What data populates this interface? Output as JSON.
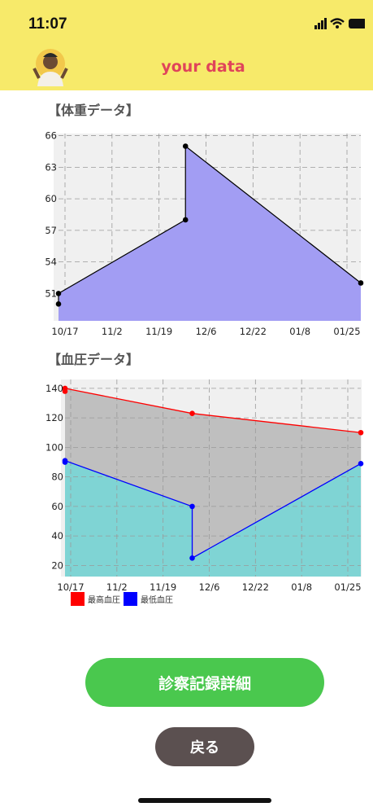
{
  "status_bar": {
    "time": "11:07"
  },
  "header": {
    "title": "your data"
  },
  "weight_section": {
    "title": "【体重データ】"
  },
  "bp_section": {
    "title": "【血圧データ】"
  },
  "buttons": {
    "records": "診察記録詳細",
    "back": "戻る"
  },
  "colors": {
    "header": "#f7ea6a",
    "title": "#e0445a",
    "green": "#4ac84e",
    "back": "#5b5050",
    "weight_fill": "#a29df3",
    "bp_high": "#ff0000",
    "bp_low": "#0000ff",
    "bp_gray": "#bfbfbf",
    "bp_teal": "#7fd4d4"
  },
  "chart_data": [
    {
      "type": "area",
      "title": "",
      "x_tick_labels": [
        "10/17",
        "11/2",
        "11/19",
        "12/6",
        "12/22",
        "01/8",
        "01/25"
      ],
      "y_ticks": [
        51,
        54,
        57,
        60,
        63,
        66
      ],
      "ylim": [
        48.4,
        66.2
      ],
      "xlim": [
        0,
        100
      ],
      "grid": true,
      "series": [
        {
          "points": [
            [
              0,
              50
            ],
            [
              0,
              51
            ],
            [
              42,
              58
            ],
            [
              42,
              65
            ],
            [
              100,
              52
            ]
          ]
        }
      ]
    },
    {
      "type": "area",
      "title": "",
      "x_tick_labels": [
        "10/17",
        "11/2",
        "11/19",
        "12/6",
        "12/22",
        "01/8",
        "01/25"
      ],
      "y_ticks": [
        20,
        40,
        60,
        80,
        100,
        120,
        140
      ],
      "ylim": [
        12.5,
        146
      ],
      "xlim": [
        0,
        100
      ],
      "grid": true,
      "legend_position": "bottom-left",
      "series": [
        {
          "name": "最高血圧",
          "color": "#ff0000",
          "points": [
            [
              0,
              138
            ],
            [
              0,
              140
            ],
            [
              43,
              123
            ],
            [
              100,
              110
            ]
          ]
        },
        {
          "name": "最低血圧",
          "color": "#0000ff",
          "points": [
            [
              0,
              90
            ],
            [
              0,
              91
            ],
            [
              43,
              60
            ],
            [
              43,
              25
            ],
            [
              100,
              89
            ]
          ]
        }
      ]
    }
  ]
}
